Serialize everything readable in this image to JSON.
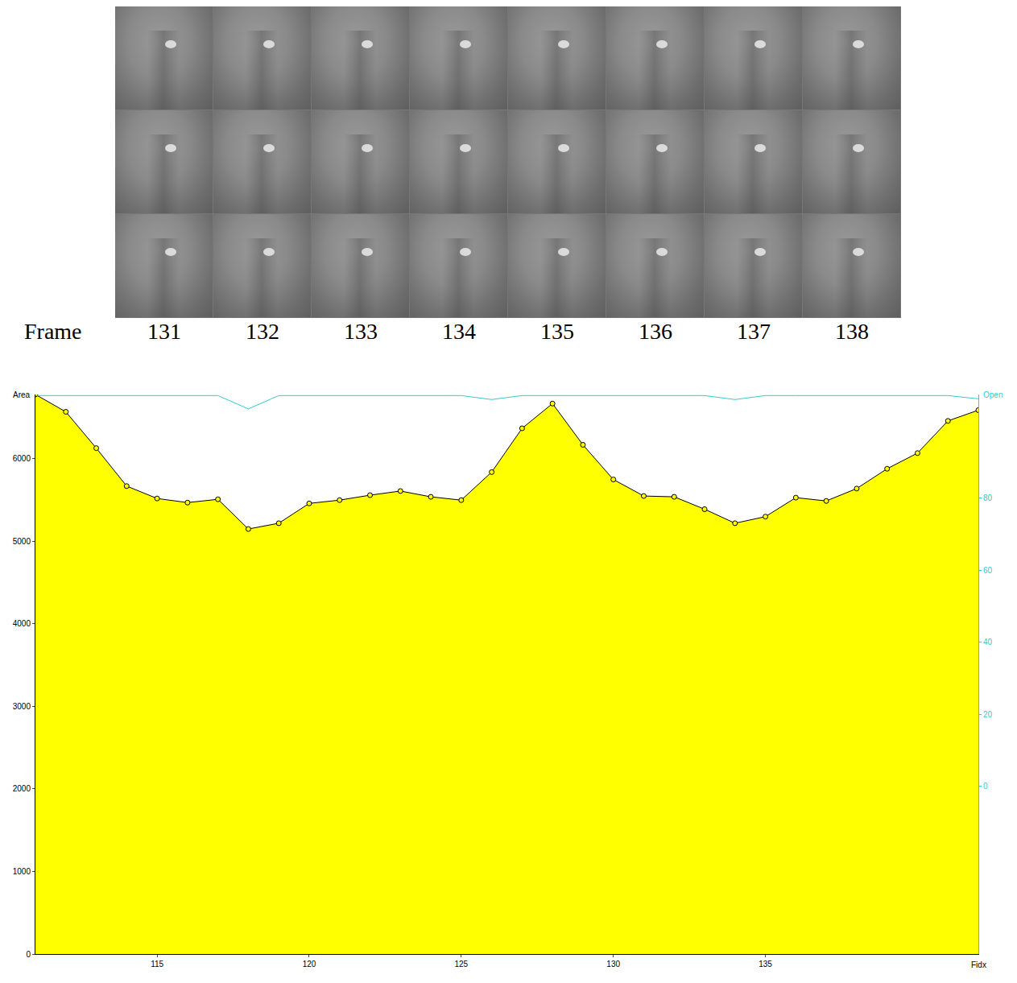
{
  "frame_strip": {
    "label": "Frame",
    "numbers": [
      131,
      132,
      133,
      134,
      135,
      136,
      137,
      138
    ],
    "rows": 3
  },
  "chart_data": {
    "type": "area",
    "x_label": "Fidx",
    "y_label": "Area",
    "y2_label": "Open",
    "x": [
      111,
      112,
      113,
      114,
      115,
      116,
      117,
      118,
      119,
      120,
      121,
      122,
      123,
      124,
      125,
      126,
      127,
      128,
      129,
      130,
      131,
      132,
      133,
      134,
      135,
      136,
      137,
      138,
      139,
      140,
      141,
      142
    ],
    "series": [
      {
        "name": "Area",
        "type": "area",
        "color": "#ffff00",
        "marker": "circle",
        "line_style": "solid",
        "values": [
          6780,
          6570,
          6130,
          5670,
          5520,
          5470,
          5510,
          5150,
          5220,
          5460,
          5500,
          5560,
          5610,
          5540,
          5500,
          5840,
          6370,
          6670,
          6170,
          5750,
          5550,
          5540,
          5390,
          5220,
          5300,
          5530,
          5490,
          5640,
          5880,
          6070,
          6460,
          6590
        ]
      },
      {
        "name": "Open",
        "type": "line",
        "axis": "y2",
        "color": "#33cccc",
        "line_style": "solid",
        "values": [
          108.5,
          108.5,
          108.5,
          108.5,
          108.5,
          108.5,
          108.5,
          104.8,
          108.5,
          108.5,
          108.5,
          108.5,
          108.5,
          108.5,
          108.5,
          107.4,
          108.5,
          108.5,
          108.5,
          108.5,
          108.5,
          108.5,
          108.5,
          107.4,
          108.5,
          108.5,
          108.5,
          108.5,
          108.5,
          108.5,
          108.5,
          107.6
        ]
      }
    ],
    "xlim": [
      111,
      142
    ],
    "xticks": [
      115,
      120,
      125,
      130,
      135
    ],
    "ylim": [
      0,
      6780
    ],
    "yticks": [
      0,
      1000,
      2000,
      3000,
      4000,
      5000,
      6000
    ],
    "y2lim": [
      -46.5,
      108.8
    ],
    "y2ticks": [
      0,
      20,
      40,
      60,
      80
    ],
    "grid": false
  }
}
